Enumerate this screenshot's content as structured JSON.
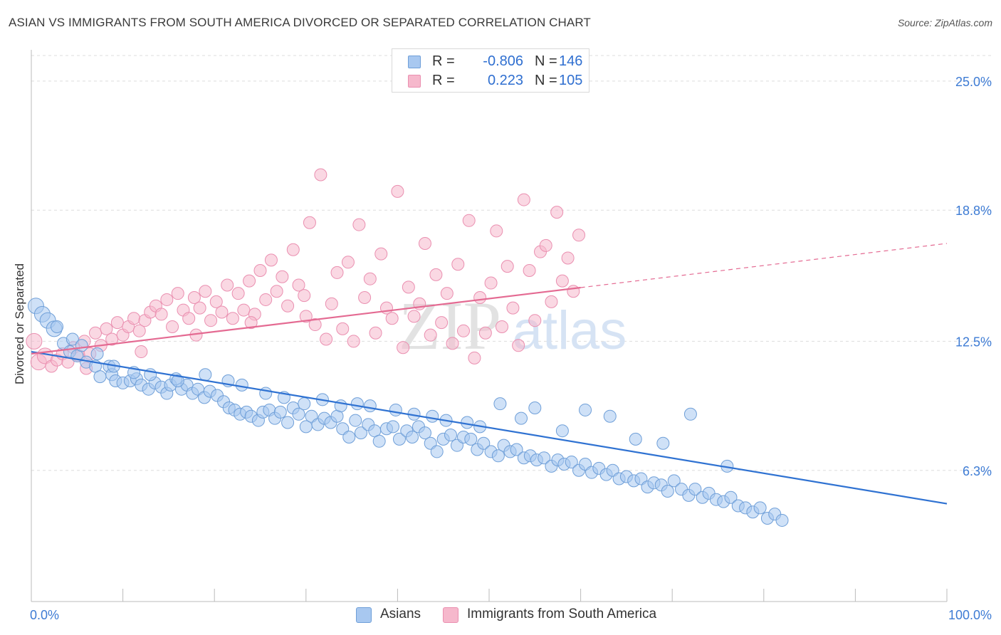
{
  "header": {
    "title": "ASIAN VS IMMIGRANTS FROM SOUTH AMERICA DIVORCED OR SEPARATED CORRELATION CHART",
    "source": "Source: ZipAtlas.com"
  },
  "legend_top": [
    {
      "r_label": "R =",
      "r_value": "-0.806",
      "n_label": "N =",
      "n_value": "146",
      "color": "#a8c8f0"
    },
    {
      "r_label": "R =",
      "r_value": "0.223",
      "n_label": "N =",
      "n_value": "105",
      "color": "#f6b8cc"
    }
  ],
  "legend_bottom": [
    {
      "label": "Asians",
      "color": "#a8c8f0"
    },
    {
      "label": "Immigrants from South America",
      "color": "#f6b8cc"
    }
  ],
  "watermark": {
    "zip": "ZIP",
    "atlas": "atlas"
  },
  "colors": {
    "blue_fill": "#a8c8f0",
    "blue_stroke": "#6f9fd8",
    "blue_line": "#2f72d2",
    "pink_fill": "#f6b8cc",
    "pink_stroke": "#ea8fb0",
    "pink_line": "#e46a92",
    "tick_label": "#3d7bd4",
    "grid": "#dddddd"
  },
  "chart_data": {
    "type": "scatter",
    "title": "ASIAN VS IMMIGRANTS FROM SOUTH AMERICA DIVORCED OR SEPARATED CORRELATION CHART",
    "xlabel": "",
    "ylabel": "Divorced or Separated",
    "xlim": [
      0,
      100
    ],
    "ylim": [
      0,
      26.5
    ],
    "x_tick_labels": [
      "0.0%",
      "100.0%"
    ],
    "y_ticks": [
      6.3,
      12.5,
      18.8,
      25.0
    ],
    "y_tick_labels": [
      "6.3%",
      "12.5%",
      "18.8%",
      "25.0%"
    ],
    "grid": true,
    "legend_placement": "top-center",
    "series": [
      {
        "name": "Asians",
        "R": -0.806,
        "N": 146,
        "trend": {
          "x": [
            0,
            100
          ],
          "y": [
            12.0,
            4.7
          ],
          "dashed_after": null
        },
        "points": [
          [
            0.5,
            14.2
          ],
          [
            1.2,
            13.8
          ],
          [
            1.8,
            13.5
          ],
          [
            2.5,
            13.1
          ],
          [
            3.5,
            12.4
          ],
          [
            4.2,
            12.0
          ],
          [
            5.0,
            11.8
          ],
          [
            6.0,
            11.5
          ],
          [
            7.0,
            11.3
          ],
          [
            7.5,
            10.8
          ],
          [
            2.8,
            13.2
          ],
          [
            4.5,
            12.6
          ],
          [
            5.5,
            12.3
          ],
          [
            7.2,
            11.9
          ],
          [
            8.5,
            11.3
          ],
          [
            8.8,
            10.9
          ],
          [
            9.2,
            10.6
          ],
          [
            10.0,
            10.5
          ],
          [
            10.8,
            10.6
          ],
          [
            11.5,
            10.7
          ],
          [
            12.0,
            10.4
          ],
          [
            12.8,
            10.2
          ],
          [
            13.5,
            10.5
          ],
          [
            14.2,
            10.3
          ],
          [
            14.8,
            10.0
          ],
          [
            15.2,
            10.4
          ],
          [
            15.8,
            10.7
          ],
          [
            16.4,
            10.2
          ],
          [
            17.0,
            10.4
          ],
          [
            17.6,
            10.0
          ],
          [
            18.2,
            10.2
          ],
          [
            18.9,
            9.8
          ],
          [
            19.5,
            10.1
          ],
          [
            20.3,
            9.9
          ],
          [
            21.0,
            9.6
          ],
          [
            21.6,
            9.3
          ],
          [
            22.2,
            9.2
          ],
          [
            22.8,
            9.0
          ],
          [
            23.5,
            9.1
          ],
          [
            24.0,
            8.9
          ],
          [
            24.8,
            8.7
          ],
          [
            25.3,
            9.1
          ],
          [
            26.0,
            9.2
          ],
          [
            26.6,
            8.8
          ],
          [
            27.2,
            9.1
          ],
          [
            28.0,
            8.6
          ],
          [
            28.6,
            9.3
          ],
          [
            29.2,
            9.0
          ],
          [
            30.0,
            8.4
          ],
          [
            30.6,
            8.9
          ],
          [
            31.3,
            8.5
          ],
          [
            32.0,
            8.8
          ],
          [
            32.7,
            8.6
          ],
          [
            33.4,
            8.9
          ],
          [
            34.0,
            8.3
          ],
          [
            34.7,
            7.9
          ],
          [
            35.4,
            8.7
          ],
          [
            36.0,
            8.1
          ],
          [
            36.8,
            8.5
          ],
          [
            37.5,
            8.2
          ],
          [
            38.0,
            7.7
          ],
          [
            38.8,
            8.3
          ],
          [
            39.5,
            8.4
          ],
          [
            40.2,
            7.8
          ],
          [
            41.0,
            8.2
          ],
          [
            41.6,
            7.9
          ],
          [
            42.3,
            8.4
          ],
          [
            43.0,
            8.1
          ],
          [
            43.6,
            7.6
          ],
          [
            44.3,
            7.2
          ],
          [
            45.0,
            7.8
          ],
          [
            45.8,
            8.0
          ],
          [
            46.5,
            7.5
          ],
          [
            47.2,
            7.9
          ],
          [
            48.0,
            7.8
          ],
          [
            48.7,
            7.3
          ],
          [
            49.4,
            7.6
          ],
          [
            50.2,
            7.2
          ],
          [
            51.0,
            7.0
          ],
          [
            51.6,
            7.5
          ],
          [
            52.3,
            7.2
          ],
          [
            53.0,
            7.3
          ],
          [
            53.8,
            6.9
          ],
          [
            54.5,
            7.0
          ],
          [
            55.2,
            6.8
          ],
          [
            56.0,
            6.9
          ],
          [
            56.8,
            6.5
          ],
          [
            57.5,
            6.8
          ],
          [
            58.2,
            6.6
          ],
          [
            59.0,
            6.7
          ],
          [
            59.8,
            6.3
          ],
          [
            60.5,
            6.6
          ],
          [
            61.2,
            6.2
          ],
          [
            62.0,
            6.4
          ],
          [
            62.8,
            6.1
          ],
          [
            63.5,
            6.3
          ],
          [
            64.2,
            5.9
          ],
          [
            65.0,
            6.0
          ],
          [
            65.8,
            5.8
          ],
          [
            66.6,
            5.9
          ],
          [
            67.3,
            5.5
          ],
          [
            68.0,
            5.7
          ],
          [
            68.8,
            5.6
          ],
          [
            69.5,
            5.3
          ],
          [
            70.2,
            5.8
          ],
          [
            71.0,
            5.4
          ],
          [
            71.8,
            5.1
          ],
          [
            72.5,
            5.4
          ],
          [
            73.3,
            5.0
          ],
          [
            74.0,
            5.2
          ],
          [
            74.8,
            4.9
          ],
          [
            75.6,
            4.8
          ],
          [
            76.4,
            5.0
          ],
          [
            77.2,
            4.6
          ],
          [
            78.0,
            4.5
          ],
          [
            78.8,
            4.3
          ],
          [
            79.6,
            4.5
          ],
          [
            80.4,
            4.0
          ],
          [
            81.2,
            4.2
          ],
          [
            82.0,
            3.9
          ],
          [
            9.0,
            11.3
          ],
          [
            11.2,
            11.0
          ],
          [
            13.0,
            10.9
          ],
          [
            16.0,
            10.6
          ],
          [
            19.0,
            10.9
          ],
          [
            21.5,
            10.6
          ],
          [
            23.0,
            10.4
          ],
          [
            25.6,
            10.0
          ],
          [
            27.6,
            9.8
          ],
          [
            29.8,
            9.5
          ],
          [
            31.8,
            9.7
          ],
          [
            33.8,
            9.4
          ],
          [
            35.6,
            9.5
          ],
          [
            37.0,
            9.4
          ],
          [
            39.8,
            9.2
          ],
          [
            41.8,
            9.0
          ],
          [
            43.8,
            8.9
          ],
          [
            45.3,
            8.7
          ],
          [
            47.6,
            8.6
          ],
          [
            49.0,
            8.4
          ],
          [
            51.2,
            9.5
          ],
          [
            53.5,
            8.8
          ],
          [
            55.0,
            9.3
          ],
          [
            58.0,
            8.2
          ],
          [
            60.5,
            9.2
          ],
          [
            63.2,
            8.9
          ],
          [
            66.0,
            7.8
          ],
          [
            69.0,
            7.6
          ],
          [
            72.0,
            9.0
          ],
          [
            76.0,
            6.5
          ]
        ]
      },
      {
        "name": "Immigrants from South America",
        "R": 0.223,
        "N": 105,
        "trend": {
          "x": [
            0,
            100
          ],
          "y": [
            11.9,
            17.2
          ],
          "dashed_after": 60
        },
        "points": [
          [
            0.3,
            12.5
          ],
          [
            0.8,
            11.5
          ],
          [
            1.5,
            11.8
          ],
          [
            2.2,
            11.3
          ],
          [
            2.8,
            11.6
          ],
          [
            3.4,
            11.9
          ],
          [
            4.0,
            11.5
          ],
          [
            4.6,
            12.2
          ],
          [
            5.2,
            11.8
          ],
          [
            5.8,
            12.5
          ],
          [
            6.4,
            11.9
          ],
          [
            7.0,
            12.9
          ],
          [
            7.6,
            12.3
          ],
          [
            8.2,
            13.1
          ],
          [
            8.8,
            12.6
          ],
          [
            9.4,
            13.4
          ],
          [
            10.0,
            12.8
          ],
          [
            10.6,
            13.2
          ],
          [
            11.2,
            13.6
          ],
          [
            11.8,
            13.0
          ],
          [
            12.4,
            13.5
          ],
          [
            13.0,
            13.9
          ],
          [
            13.6,
            14.2
          ],
          [
            14.2,
            13.8
          ],
          [
            14.8,
            14.5
          ],
          [
            15.4,
            13.2
          ],
          [
            16.0,
            14.8
          ],
          [
            16.6,
            14.0
          ],
          [
            17.2,
            13.6
          ],
          [
            17.8,
            14.6
          ],
          [
            18.4,
            14.1
          ],
          [
            19.0,
            14.9
          ],
          [
            19.6,
            13.5
          ],
          [
            20.2,
            14.4
          ],
          [
            20.8,
            13.9
          ],
          [
            21.4,
            15.2
          ],
          [
            22.0,
            13.6
          ],
          [
            22.6,
            14.8
          ],
          [
            23.2,
            14.0
          ],
          [
            23.8,
            15.4
          ],
          [
            24.4,
            13.8
          ],
          [
            25.0,
            15.9
          ],
          [
            25.6,
            14.5
          ],
          [
            26.2,
            16.4
          ],
          [
            26.8,
            14.9
          ],
          [
            27.4,
            15.6
          ],
          [
            28.0,
            14.2
          ],
          [
            28.6,
            16.9
          ],
          [
            29.2,
            15.2
          ],
          [
            29.8,
            14.7
          ],
          [
            30.4,
            18.2
          ],
          [
            31.0,
            13.3
          ],
          [
            31.6,
            20.5
          ],
          [
            32.2,
            12.6
          ],
          [
            32.8,
            14.3
          ],
          [
            33.4,
            15.8
          ],
          [
            34.0,
            13.1
          ],
          [
            34.6,
            16.3
          ],
          [
            35.2,
            12.5
          ],
          [
            35.8,
            18.1
          ],
          [
            36.4,
            14.6
          ],
          [
            37.0,
            15.5
          ],
          [
            37.6,
            12.9
          ],
          [
            38.2,
            16.7
          ],
          [
            38.8,
            14.1
          ],
          [
            39.4,
            13.6
          ],
          [
            40.0,
            19.7
          ],
          [
            40.6,
            12.2
          ],
          [
            41.2,
            15.1
          ],
          [
            41.8,
            13.7
          ],
          [
            42.4,
            14.3
          ],
          [
            43.0,
            17.2
          ],
          [
            43.6,
            12.8
          ],
          [
            44.2,
            15.7
          ],
          [
            44.8,
            13.4
          ],
          [
            45.4,
            14.8
          ],
          [
            46.0,
            12.4
          ],
          [
            46.6,
            16.2
          ],
          [
            47.2,
            13.0
          ],
          [
            47.8,
            18.3
          ],
          [
            48.4,
            11.7
          ],
          [
            49.0,
            14.6
          ],
          [
            49.6,
            12.9
          ],
          [
            50.2,
            15.3
          ],
          [
            50.8,
            17.8
          ],
          [
            51.4,
            13.2
          ],
          [
            52.0,
            16.1
          ],
          [
            52.6,
            14.1
          ],
          [
            53.2,
            12.3
          ],
          [
            53.8,
            19.3
          ],
          [
            54.4,
            15.9
          ],
          [
            55.0,
            13.5
          ],
          [
            55.6,
            16.8
          ],
          [
            56.2,
            17.1
          ],
          [
            56.8,
            14.4
          ],
          [
            57.4,
            18.7
          ],
          [
            58.0,
            15.4
          ],
          [
            58.6,
            16.5
          ],
          [
            59.2,
            14.9
          ],
          [
            59.8,
            17.6
          ],
          [
            6.0,
            11.2
          ],
          [
            12.0,
            12.0
          ],
          [
            18.0,
            12.8
          ],
          [
            24.0,
            13.4
          ],
          [
            30.0,
            13.7
          ]
        ]
      }
    ]
  }
}
